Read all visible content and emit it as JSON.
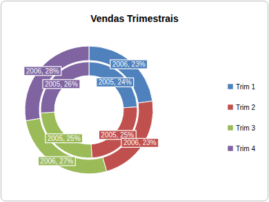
{
  "chart_data": {
    "type": "doughnut",
    "title": "Vendas Trimestrais",
    "categories": [
      "Trim 1",
      "Trim 2",
      "Trim 3",
      "Trim 4"
    ],
    "colors": [
      "#4f81bd",
      "#c0504d",
      "#9bbb59",
      "#8064a2"
    ],
    "series": [
      {
        "values": [
          24,
          25,
          25,
          26
        ],
        "value_labels": [
          "2005, 24%",
          "2005, 25%",
          "2005, 25%",
          "2005, 26%"
        ]
      },
      {
        "values": [
          23,
          23,
          27,
          28
        ],
        "value_labels": [
          "2006, 23%",
          "2006, 23%",
          "2006, 27%",
          "2006, 28%"
        ]
      }
    ],
    "data_labels": true,
    "legend": "right"
  }
}
